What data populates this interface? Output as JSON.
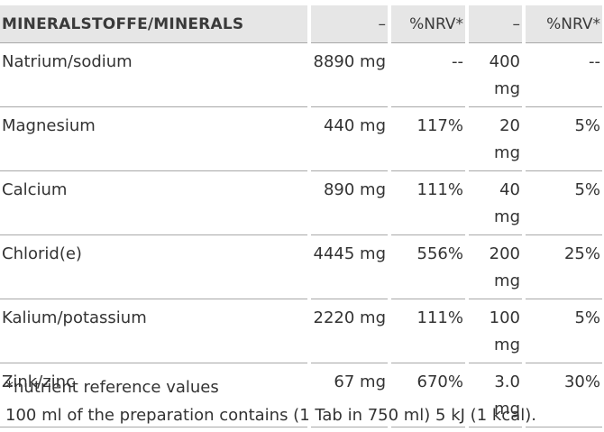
{
  "table": {
    "header": {
      "name": "MINERALSTOFFE/MINERALS",
      "amount1": "–",
      "nrv1": "%NRV*",
      "amount2": "–",
      "nrv2": "%NRV*"
    },
    "rows": [
      {
        "name": "Natrium/sodium",
        "amount1": "8890 mg",
        "nrv1": "--",
        "amount2": "400 mg",
        "nrv2": "--"
      },
      {
        "name": "Magnesium",
        "amount1": "440 mg",
        "nrv1": "117%",
        "amount2": "20 mg",
        "nrv2": "5%"
      },
      {
        "name": "Calcium",
        "amount1": "890 mg",
        "nrv1": "111%",
        "amount2": "40 mg",
        "nrv2": "5%"
      },
      {
        "name": "Chlorid(e)",
        "amount1": "4445 mg",
        "nrv1": "556%",
        "amount2": "200 mg",
        "nrv2": "25%"
      },
      {
        "name": "Kalium/potassium",
        "amount1": "2220 mg",
        "nrv1": "111%",
        "amount2": "100 mg",
        "nrv2": "5%"
      },
      {
        "name": "Zink/zinc",
        "amount1": "67 mg",
        "nrv1": "670%",
        "amount2": "3.0 mg",
        "nrv2": "30%"
      }
    ]
  },
  "footnotes": {
    "nrv_note": "*nutrient reference values",
    "preparation_note": "100 ml of the preparation contains (1 Tab in 750 ml) 5 kJ (1 kcal)."
  }
}
